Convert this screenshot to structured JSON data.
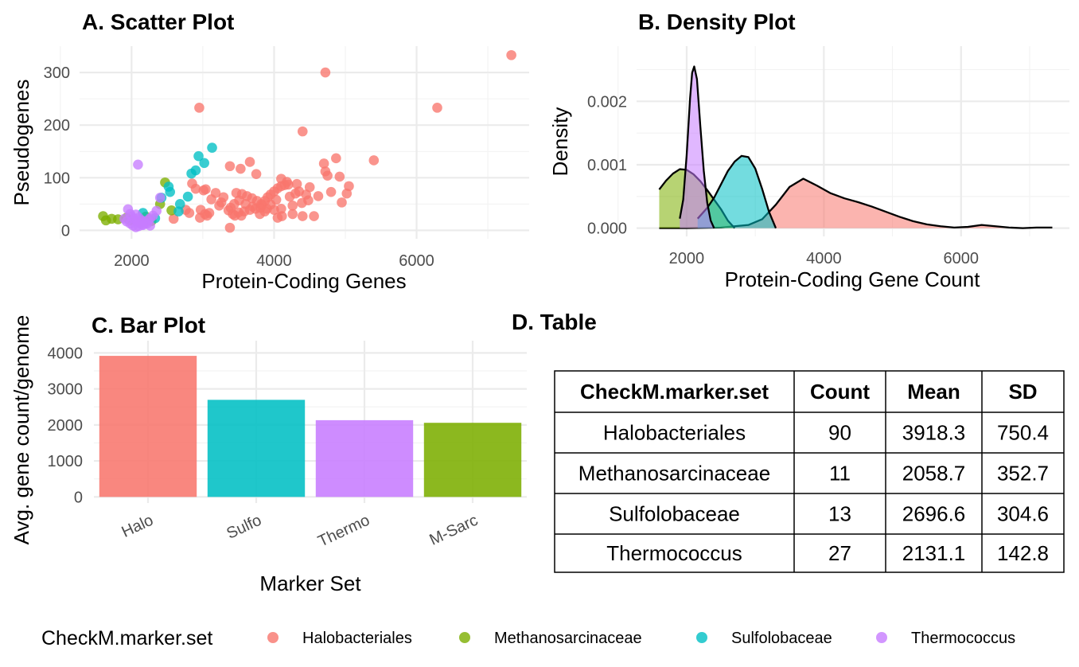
{
  "colors": {
    "Halobacteriales": "#F8766D",
    "Methanosarcinaceae": "#7CAE00",
    "Sulfolobaceae": "#00BFC4",
    "Thermococcus": "#C77CFF"
  },
  "legend": {
    "title": "CheckM.marker.set",
    "items": [
      "Halobacteriales",
      "Methanosarcinaceae",
      "Sulfolobaceae",
      "Thermococcus"
    ]
  },
  "chart_data": [
    {
      "type": "scatter",
      "title": "A. Scatter Plot",
      "xlabel": "Protein-Coding Genes",
      "ylabel": "Pseudogenes",
      "xlim": [
        1270,
        7580
      ],
      "ylim": [
        -16,
        350
      ],
      "xticks": [
        2000,
        4000,
        6000
      ],
      "yticks": [
        0,
        100,
        200,
        300
      ],
      "series": [
        {
          "name": "Halobacteriales",
          "points": [
            [
              2950,
              233
            ],
            [
              4720,
              300
            ],
            [
              7330,
              333
            ],
            [
              6290,
              233
            ],
            [
              4400,
              188
            ],
            [
              5400,
              133
            ],
            [
              4870,
              137
            ],
            [
              3380,
              122
            ],
            [
              3530,
              117
            ],
            [
              3660,
              130
            ],
            [
              3750,
              107
            ],
            [
              4100,
              98
            ],
            [
              4180,
              92
            ],
            [
              4320,
              88
            ],
            [
              4500,
              82
            ],
            [
              4750,
              104
            ],
            [
              4720,
              112
            ],
            [
              4700,
              127
            ],
            [
              4920,
              102
            ],
            [
              5050,
              84
            ],
            [
              5020,
              70
            ],
            [
              4950,
              53
            ],
            [
              4800,
              73
            ],
            [
              4620,
              65
            ],
            [
              4480,
              57
            ],
            [
              4390,
              52
            ],
            [
              4260,
              47
            ],
            [
              4100,
              41
            ],
            [
              4000,
              39
            ],
            [
              3900,
              41
            ],
            [
              3810,
              43
            ],
            [
              3700,
              45
            ],
            [
              3600,
              50
            ],
            [
              3510,
              57
            ],
            [
              3440,
              50
            ],
            [
              3390,
              43
            ],
            [
              3360,
              38
            ],
            [
              3420,
              31
            ],
            [
              3500,
              34
            ],
            [
              3580,
              36
            ],
            [
              3660,
              39
            ],
            [
              3740,
              41
            ],
            [
              3820,
              50
            ],
            [
              3760,
              56
            ],
            [
              3690,
              61
            ],
            [
              3620,
              65
            ],
            [
              3550,
              69
            ],
            [
              3470,
              71
            ],
            [
              3290,
              63
            ],
            [
              3180,
              71
            ],
            [
              3010,
              76
            ],
            [
              2900,
              79
            ],
            [
              2850,
              89
            ],
            [
              3040,
              78
            ],
            [
              3120,
              59
            ],
            [
              3260,
              53
            ],
            [
              3230,
              47
            ],
            [
              2970,
              39
            ],
            [
              3030,
              31
            ],
            [
              3090,
              33
            ],
            [
              2960,
              24
            ],
            [
              3060,
              28
            ],
            [
              2810,
              33
            ],
            [
              2760,
              39
            ],
            [
              2590,
              22
            ],
            [
              3380,
              5
            ],
            [
              3450,
              28
            ],
            [
              3540,
              28
            ],
            [
              3800,
              31
            ],
            [
              3830,
              48
            ],
            [
              3870,
              56
            ],
            [
              3910,
              63
            ],
            [
              3950,
              68
            ],
            [
              4000,
              74
            ],
            [
              4050,
              80
            ],
            [
              4100,
              84
            ],
            [
              4150,
              86
            ],
            [
              4200,
              87
            ],
            [
              4030,
              58
            ],
            [
              3950,
              49
            ],
            [
              3870,
              36
            ],
            [
              4050,
              24
            ],
            [
              4110,
              27
            ],
            [
              4260,
              31
            ],
            [
              4400,
              27
            ],
            [
              4560,
              27
            ],
            [
              4220,
              64
            ],
            [
              4300,
              70
            ],
            [
              4350,
              74
            ],
            [
              4450,
              68
            ]
          ]
        },
        {
          "name": "Methanosarcinaceae",
          "points": [
            [
              1600,
              27
            ],
            [
              1640,
              19
            ],
            [
              1720,
              22
            ],
            [
              1810,
              21
            ],
            [
              2400,
              50
            ],
            [
              2470,
              91
            ],
            [
              2560,
              38
            ],
            [
              2280,
              18
            ],
            [
              2200,
              26
            ],
            [
              1930,
              24
            ],
            [
              1980,
              19
            ]
          ]
        },
        {
          "name": "Sulfolobaceae",
          "points": [
            [
              3130,
              157
            ],
            [
              2940,
              141
            ],
            [
              3020,
              128
            ],
            [
              2900,
              114
            ],
            [
              2840,
              108
            ],
            [
              2520,
              83
            ],
            [
              2540,
              73
            ],
            [
              2420,
              62
            ],
            [
              2790,
              64
            ],
            [
              2680,
              50
            ],
            [
              2660,
              36
            ],
            [
              2160,
              33
            ],
            [
              2330,
              23
            ]
          ]
        },
        {
          "name": "Thermococcus",
          "points": [
            [
              2090,
              125
            ],
            [
              1950,
              40
            ],
            [
              1980,
              31
            ],
            [
              1900,
              22
            ],
            [
              1930,
              17
            ],
            [
              1980,
              13
            ],
            [
              2020,
              9
            ],
            [
              2060,
              6
            ],
            [
              2100,
              8
            ],
            [
              2150,
              11
            ],
            [
              2190,
              14
            ],
            [
              2230,
              19
            ],
            [
              2260,
              23
            ],
            [
              2300,
              28
            ],
            [
              2350,
              37
            ],
            [
              2400,
              62
            ],
            [
              2060,
              30
            ],
            [
              2100,
              24
            ],
            [
              2140,
              19
            ],
            [
              2180,
              16
            ],
            [
              2220,
              13
            ],
            [
              2260,
              9
            ],
            [
              2000,
              26
            ],
            [
              2040,
              22
            ],
            [
              2080,
              18
            ],
            [
              2120,
              14
            ],
            [
              2160,
              10
            ]
          ]
        }
      ]
    },
    {
      "type": "area",
      "title": "B. Density Plot",
      "xlabel": "Protein-Coding Gene Count",
      "ylabel": "Density",
      "xlim": [
        1270,
        7580
      ],
      "ylim": [
        -0.00013,
        0.00287
      ],
      "xticks": [
        2000,
        4000,
        6000
      ],
      "yticks": [
        0,
        0.001,
        0.002
      ],
      "ytick_labels": [
        "0.000",
        "0.001",
        "0.002"
      ],
      "series": [
        {
          "name": "Halobacteriales",
          "x": [
            1600,
            2000,
            2500,
            2900,
            3100,
            3300,
            3500,
            3700,
            3900,
            4100,
            4300,
            4500,
            4700,
            4900,
            5100,
            5300,
            5500,
            5700,
            5900,
            6100,
            6300,
            6500,
            6700,
            6900,
            7100,
            7330
          ],
          "y": [
            0,
            0,
            1e-05,
            5e-05,
            0.00014,
            0.00037,
            0.00065,
            0.00078,
            0.00067,
            0.00055,
            0.00047,
            0.00041,
            0.00034,
            0.00026,
            0.00018,
            0.00011,
            6e-05,
            3e-05,
            1e-05,
            2e-05,
            5e-05,
            3e-05,
            1e-05,
            0.0,
            1e-05,
            1e-05
          ]
        },
        {
          "name": "Methanosarcinaceae",
          "x": [
            1600,
            1700,
            1800,
            1900,
            2000,
            2100,
            2200,
            2300,
            2400,
            2500,
            2600,
            2700
          ],
          "y": [
            0.00061,
            0.00075,
            0.00086,
            0.00093,
            0.00092,
            0.00085,
            0.00074,
            0.0006,
            0.00045,
            0.0003,
            0.00012,
            0.0
          ]
        },
        {
          "name": "Sulfolobaceae",
          "x": [
            2160,
            2300,
            2400,
            2500,
            2600,
            2700,
            2800,
            2900,
            3000,
            3100,
            3200,
            3300
          ],
          "y": [
            0.00015,
            0.00032,
            0.00048,
            0.00069,
            0.0009,
            0.00105,
            0.00114,
            0.00112,
            0.00094,
            0.00062,
            0.00026,
            0.0
          ]
        },
        {
          "name": "Thermococcus",
          "x": [
            1900,
            1950,
            2000,
            2050,
            2080,
            2110,
            2150,
            2200,
            2250,
            2300,
            2350,
            2400
          ],
          "y": [
            0.00015,
            0.00045,
            0.00115,
            0.00205,
            0.00245,
            0.00255,
            0.00235,
            0.0016,
            0.0009,
            0.0004,
            0.00012,
            0.0
          ]
        }
      ]
    },
    {
      "type": "bar",
      "title": "C. Bar Plot",
      "xlabel": "Marker Set",
      "ylabel": "Avg. gene count/genome",
      "ylim": [
        0,
        4200
      ],
      "yticks": [
        0,
        1000,
        2000,
        3000,
        4000
      ],
      "categories": [
        "Halo",
        "Sulfo",
        "Thermo",
        "M-Sarc"
      ],
      "values": [
        3918.3,
        2696.6,
        2131.1,
        2058.7
      ],
      "series_colors": [
        "Halobacteriales",
        "Sulfolobaceae",
        "Thermococcus",
        "Methanosarcinaceae"
      ]
    },
    {
      "type": "table",
      "title": "D. Table",
      "columns": [
        "CheckM.marker.set",
        "Count",
        "Mean",
        "SD"
      ],
      "rows": [
        [
          "Halobacteriales",
          "90",
          "3918.3",
          "750.4"
        ],
        [
          "Methanosarcinaceae",
          "11",
          "2058.7",
          "352.7"
        ],
        [
          "Sulfolobaceae",
          "13",
          "2696.6",
          "304.6"
        ],
        [
          "Thermococcus",
          "27",
          "2131.1",
          "142.8"
        ]
      ]
    }
  ]
}
